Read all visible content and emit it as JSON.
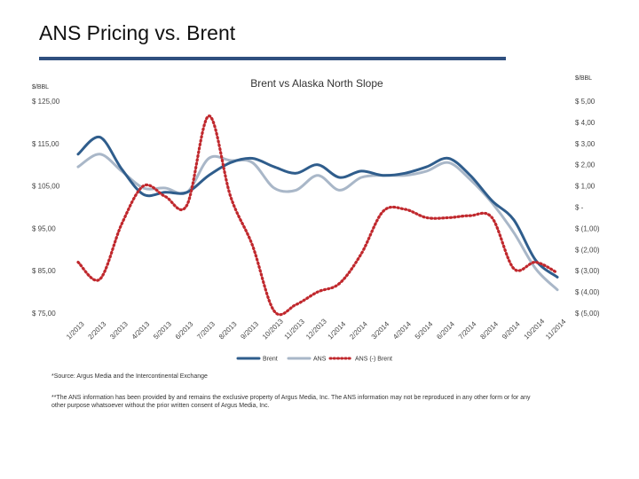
{
  "slide": {
    "title": "ANS Pricing vs. Brent"
  },
  "colors": {
    "brent": "#2f5d8c",
    "ans": "#a9b7c8",
    "diff": "#c0282d",
    "rule": "#2f4f7f"
  },
  "chart_data": {
    "type": "line",
    "title": "Brent vs Alaska North Slope",
    "left_unit": "$/BBL",
    "right_unit": "$/BBL",
    "left_axis": {
      "range": [
        75,
        125
      ],
      "ticks": [
        {
          "value": 125,
          "label": "$ 125,00"
        },
        {
          "value": 115,
          "label": "$ 115,00"
        },
        {
          "value": 105,
          "label": "$ 105,00"
        },
        {
          "value": 95,
          "label": "$ 95,00"
        },
        {
          "value": 85,
          "label": "$ 85,00"
        },
        {
          "value": 75,
          "label": "$ 75,00"
        }
      ]
    },
    "right_axis": {
      "range": [
        -5,
        5
      ],
      "ticks": [
        {
          "value": 5,
          "label": "$ 5,00"
        },
        {
          "value": 4,
          "label": "$ 4,00"
        },
        {
          "value": 3,
          "label": "$ 3,00"
        },
        {
          "value": 2,
          "label": "$ 2,00"
        },
        {
          "value": 1,
          "label": "$ 1,00"
        },
        {
          "value": 0,
          "label": "$ -"
        },
        {
          "value": -1,
          "label": "$ (1,00)"
        },
        {
          "value": -2,
          "label": "$ (2,00)"
        },
        {
          "value": -3,
          "label": "$ (3,00)"
        },
        {
          "value": -4,
          "label": "$ (4,00)"
        },
        {
          "value": -5,
          "label": "$ (5,00)"
        }
      ]
    },
    "categories": [
      "1/2013",
      "2/2013",
      "3/2013",
      "4/2013",
      "5/2013",
      "6/2013",
      "7/2013",
      "8/2013",
      "9/2013",
      "10/2013",
      "11/2013",
      "12/2013",
      "1/2014",
      "2/2014",
      "3/2014",
      "4/2014",
      "5/2014",
      "6/2014",
      "7/2014",
      "8/2014",
      "9/2014",
      "10/2014",
      "11/2014"
    ],
    "series": [
      {
        "name": "Brent",
        "axis": "left",
        "style": "solid",
        "values": [
          112.5,
          116.5,
          109.0,
          103.0,
          103.5,
          103.5,
          107.5,
          110.5,
          111.5,
          109.5,
          108.0,
          110.0,
          107.0,
          108.5,
          107.5,
          108.0,
          109.5,
          111.5,
          107.5,
          101.5,
          97.0,
          87.5,
          83.5
        ]
      },
      {
        "name": "ANS",
        "axis": "left",
        "style": "solid",
        "values": [
          109.5,
          112.5,
          108.5,
          104.5,
          104.5,
          103.5,
          111.5,
          111.0,
          110.5,
          104.5,
          104.0,
          107.5,
          104.0,
          107.0,
          107.5,
          107.5,
          108.5,
          110.5,
          106.5,
          101.0,
          94.0,
          85.5,
          80.5
        ]
      },
      {
        "name": "ANS (-) Brent",
        "axis": "right",
        "style": "dotted",
        "values": [
          -2.6,
          -3.4,
          -0.8,
          1.0,
          0.5,
          0.1,
          4.3,
          0.5,
          -1.8,
          -4.9,
          -4.6,
          -4.0,
          -3.6,
          -2.2,
          -0.2,
          -0.1,
          -0.5,
          -0.5,
          -0.4,
          -0.5,
          -2.9,
          -2.6,
          -3.1
        ]
      }
    ]
  },
  "footnotes": {
    "source": "*Source: Argus Media and the Intercontinental Exchange",
    "disclaimer": "**The ANS information has been provided by and remains the exclusive property of Argus Media, Inc. The ANS information may not be reproduced in any other form or for any other purpose whatsoever without the prior written consent of Argus Media, Inc."
  }
}
